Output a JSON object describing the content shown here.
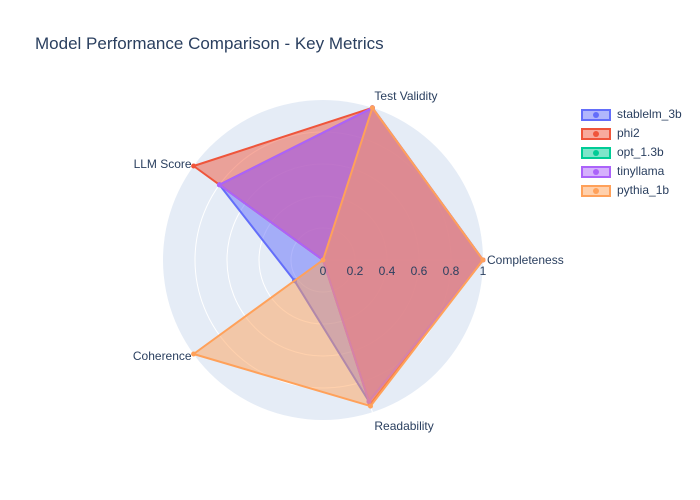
{
  "chart_data": {
    "type": "radar",
    "title": "Model Performance Comparison - Key Metrics",
    "axes": [
      "Completeness",
      "Test Validity",
      "LLM Score",
      "Coherence",
      "Readability"
    ],
    "radial_range": [
      0,
      1
    ],
    "radial_ticks": [
      "0",
      "0.2",
      "0.4",
      "0.6",
      "0.8",
      "1"
    ],
    "legend_position": "top-right",
    "series": [
      {
        "name": "stablelm_3b",
        "color": "#636efa",
        "values": [
          1.0,
          1.0,
          0.8,
          0.22,
          0.93
        ]
      },
      {
        "name": "phi2",
        "color": "#ef553b",
        "values": [
          1.0,
          1.0,
          1.0,
          0.0,
          0.95
        ]
      },
      {
        "name": "opt_1.3b",
        "color": "#00cc96",
        "values": [
          0.0,
          0.0,
          0.0,
          0.0,
          0.0
        ]
      },
      {
        "name": "tinyllama",
        "color": "#ab63fa",
        "values": [
          1.0,
          1.0,
          0.8,
          0.0,
          0.93
        ]
      },
      {
        "name": "pythia_1b",
        "color": "#ffa15a",
        "values": [
          1.0,
          1.0,
          0.0,
          1.0,
          0.96
        ]
      }
    ]
  }
}
